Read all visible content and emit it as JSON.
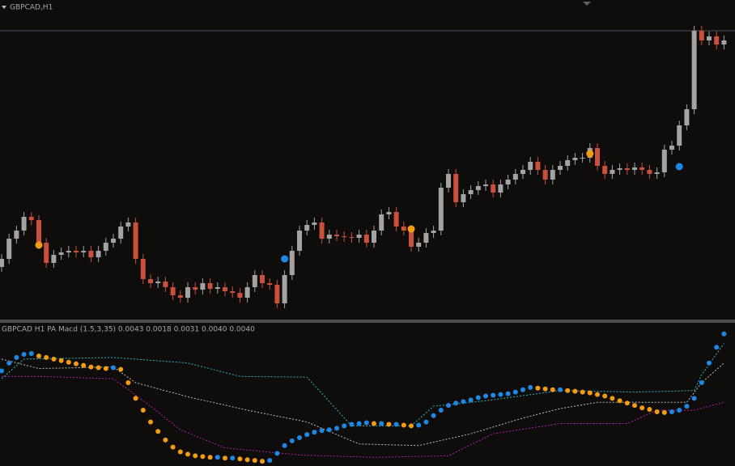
{
  "chart_data": [
    {
      "type": "candlestick",
      "title": "GBPCAD,H1",
      "open": [
        70,
        80,
        105,
        115,
        132,
        128,
        100,
        75,
        85,
        88,
        90,
        88,
        90,
        82,
        90,
        100,
        105,
        120,
        125,
        80,
        55,
        50,
        52,
        45,
        35,
        32,
        45,
        42,
        50,
        43,
        45,
        40,
        38,
        32,
        45,
        60,
        50,
        48,
        25,
        60,
        90,
        115,
        122,
        125,
        105,
        110,
        108,
        107,
        106,
        110,
        100,
        115,
        135,
        138,
        120,
        115,
        95,
        100,
        112,
        115,
        168,
        185,
        150,
        160,
        165,
        170,
        172,
        162,
        172,
        178,
        185,
        190,
        200,
        190,
        178,
        190,
        195,
        202,
        205,
        205,
        217,
        195,
        185,
        190,
        192,
        190,
        193,
        190,
        185,
        187,
        215,
        220,
        245,
        265,
        362,
        350,
        355,
        345
      ],
      "close": [
        80,
        105,
        115,
        132,
        128,
        100,
        75,
        85,
        88,
        90,
        88,
        90,
        82,
        90,
        100,
        105,
        120,
        125,
        80,
        55,
        50,
        52,
        45,
        35,
        32,
        45,
        42,
        50,
        43,
        45,
        40,
        38,
        32,
        45,
        60,
        50,
        48,
        25,
        60,
        90,
        115,
        122,
        125,
        105,
        110,
        108,
        107,
        106,
        110,
        100,
        115,
        135,
        138,
        120,
        115,
        95,
        100,
        112,
        115,
        168,
        185,
        150,
        160,
        165,
        170,
        172,
        162,
        172,
        178,
        185,
        190,
        200,
        190,
        178,
        190,
        195,
        202,
        205,
        205,
        217,
        195,
        185,
        190,
        192,
        190,
        193,
        190,
        185,
        187,
        215,
        220,
        245,
        265,
        362,
        350,
        355,
        345,
        350
      ],
      "high": [
        86,
        111,
        121,
        138,
        138,
        134,
        106,
        91,
        94,
        96,
        96,
        96,
        96,
        96,
        106,
        111,
        126,
        131,
        131,
        86,
        61,
        58,
        58,
        51,
        41,
        51,
        51,
        56,
        56,
        51,
        51,
        46,
        44,
        51,
        66,
        66,
        56,
        54,
        66,
        96,
        121,
        128,
        131,
        131,
        116,
        116,
        114,
        113,
        116,
        116,
        121,
        141,
        144,
        144,
        126,
        121,
        106,
        118,
        121,
        174,
        191,
        191,
        166,
        171,
        176,
        178,
        178,
        178,
        184,
        191,
        196,
        206,
        206,
        196,
        196,
        201,
        208,
        211,
        211,
        223,
        223,
        201,
        196,
        198,
        198,
        199,
        199,
        196,
        193,
        221,
        226,
        251,
        271,
        368,
        368,
        361,
        361,
        356
      ],
      "low": [
        64,
        74,
        99,
        109,
        122,
        94,
        69,
        69,
        79,
        82,
        82,
        82,
        76,
        76,
        84,
        94,
        99,
        114,
        74,
        49,
        44,
        44,
        39,
        29,
        26,
        26,
        36,
        36,
        37,
        37,
        34,
        32,
        26,
        26,
        39,
        44,
        42,
        19,
        19,
        54,
        84,
        109,
        116,
        99,
        99,
        102,
        101,
        100,
        100,
        94,
        94,
        109,
        129,
        114,
        109,
        89,
        89,
        94,
        106,
        109,
        162,
        144,
        144,
        154,
        159,
        164,
        156,
        156,
        166,
        172,
        179,
        184,
        184,
        172,
        172,
        184,
        189,
        196,
        199,
        199,
        189,
        179,
        179,
        184,
        184,
        184,
        184,
        179,
        179,
        181,
        209,
        214,
        239,
        259,
        344,
        344,
        339,
        339
      ],
      "up_color": "#a3a3a3",
      "down_color": "#c8503c",
      "ylim": [
        5,
        390
      ],
      "signals": [
        {
          "color": "#f39c12",
          "x": [
            5,
            55,
            79
          ],
          "values": [
            97,
            117,
            210
          ]
        },
        {
          "color": "#1e88e5",
          "x": [
            38,
            91
          ],
          "values": [
            80,
            194
          ]
        }
      ]
    },
    {
      "type": "line",
      "title": "GBPCAD H1 PA Macd (1.5,3,35) 0.0043 0.0018 0.0031 0.0040 0.0040",
      "ylim": [
        5,
        180
      ],
      "rise_color": "#1e88e5",
      "fall_color": "#f39c12",
      "values": [
        125,
        135,
        142,
        146,
        147,
        144,
        142,
        140,
        138,
        136,
        134,
        132,
        130,
        129,
        128,
        129,
        127,
        110,
        90,
        75,
        60,
        48,
        37,
        28,
        22,
        19,
        17,
        16,
        15,
        15,
        14,
        14,
        13,
        12,
        11,
        10,
        11,
        20,
        30,
        36,
        40,
        44,
        47,
        49,
        50,
        52,
        55,
        57,
        58,
        59,
        58,
        58,
        57,
        57,
        56,
        55,
        56,
        60,
        68,
        75,
        81,
        84,
        86,
        88,
        91,
        93,
        94,
        95,
        96,
        98,
        101,
        104,
        103,
        102,
        101,
        101,
        100,
        99,
        98,
        97,
        95,
        93,
        90,
        87,
        84,
        81,
        78,
        76,
        73,
        72,
        73,
        75,
        80,
        90,
        110,
        135,
        155,
        172
      ],
      "series": [
        {
          "color": "#2bb5c0",
          "x": [
            0,
            3,
            15,
            25,
            32,
            41,
            47,
            55,
            58,
            65,
            75,
            85,
            93,
            94,
            97
          ],
          "values": [
            115,
            140,
            142,
            135,
            118,
            117,
            55,
            55,
            80,
            87,
            100,
            98,
            100,
            120,
            160
          ]
        },
        {
          "color": "#bdbdbd",
          "x": [
            0,
            5,
            15,
            18,
            25,
            33,
            41,
            48,
            56,
            63,
            70,
            75,
            80,
            87,
            92,
            94,
            97
          ],
          "values": [
            140,
            128,
            130,
            110,
            92,
            75,
            60,
            32,
            30,
            45,
            65,
            77,
            85,
            85,
            85,
            110,
            135
          ]
        },
        {
          "color": "#b020b0",
          "x": [
            0,
            5,
            15,
            20,
            24,
            30,
            40,
            50,
            60,
            66,
            75,
            84,
            88,
            93,
            97
          ],
          "values": [
            118,
            118,
            115,
            80,
            50,
            27,
            18,
            15,
            17,
            45,
            58,
            58,
            75,
            75,
            85
          ]
        }
      ]
    }
  ]
}
